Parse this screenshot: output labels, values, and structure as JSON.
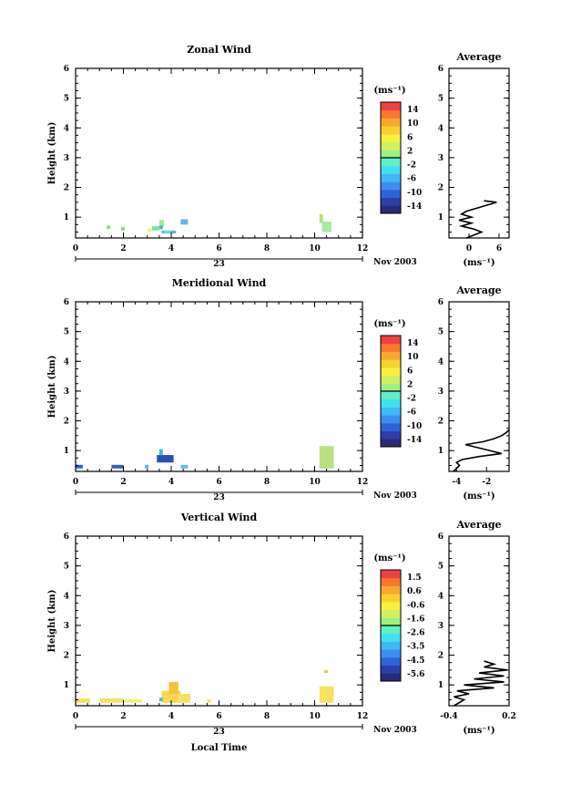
{
  "panels": [
    {
      "title": "Zonal Wind",
      "ylabel": "Height (km)",
      "unit_label": "(ms⁻¹)",
      "colorbar_ticks": [
        "14",
        "10",
        "6",
        "2",
        "-2",
        "-6",
        "-10",
        "-14"
      ],
      "colorbar_range": [
        -16,
        16
      ],
      "avg_title": "Average",
      "avg_ticks": [
        "0",
        "6"
      ],
      "avg_xlim": [
        -4,
        8
      ],
      "avg_unit": "(ms⁻¹)",
      "avg_profile": [
        [
          0.3,
          -0.5
        ],
        [
          0.4,
          1.0
        ],
        [
          0.5,
          2.5
        ],
        [
          0.6,
          1.0
        ],
        [
          0.7,
          -1.5
        ],
        [
          0.8,
          0.5
        ],
        [
          0.9,
          -2.0
        ],
        [
          1.0,
          0.5
        ],
        [
          1.1,
          -1.5
        ],
        [
          1.2,
          -0.5
        ],
        [
          1.3,
          1.5
        ],
        [
          1.4,
          3.5
        ],
        [
          1.5,
          5.5
        ],
        [
          1.55,
          3.0
        ]
      ],
      "cells": [
        [
          1.3,
          0.6,
          0.15,
          0.12,
          "#8cd68c"
        ],
        [
          1.9,
          0.55,
          0.15,
          0.12,
          "#8cd68c"
        ],
        [
          3.0,
          0.5,
          0.2,
          0.12,
          "#f0f080"
        ],
        [
          3.2,
          0.55,
          0.3,
          0.15,
          "#7fe0b0"
        ],
        [
          3.5,
          0.7,
          0.2,
          0.2,
          "#a0e8a0"
        ],
        [
          3.5,
          0.6,
          0.15,
          0.12,
          "#40c0c0"
        ],
        [
          3.6,
          0.45,
          0.6,
          0.1,
          "#5fb0e0"
        ],
        [
          3.7,
          0.45,
          0.3,
          0.1,
          "#60e0d0"
        ],
        [
          4.4,
          0.75,
          0.3,
          0.18,
          "#60b8e8"
        ],
        [
          10.2,
          0.8,
          0.15,
          0.3,
          "#b8e080"
        ],
        [
          10.3,
          0.5,
          0.4,
          0.35,
          "#a8e8a0"
        ]
      ]
    },
    {
      "title": "Meridional Wind",
      "ylabel": "Height (km)",
      "unit_label": "(ms⁻¹)",
      "colorbar_ticks": [
        "14",
        "10",
        "6",
        "2",
        "-2",
        "-6",
        "-10",
        "-14"
      ],
      "colorbar_range": [
        -16,
        16
      ],
      "avg_title": "Average",
      "avg_ticks": [
        "-4",
        "-2"
      ],
      "avg_xlim": [
        -4.5,
        -0.5
      ],
      "avg_unit": "(ms⁻¹)",
      "avg_profile": [
        [
          0.3,
          -4.2
        ],
        [
          0.5,
          -3.8
        ],
        [
          0.6,
          -4.0
        ],
        [
          0.7,
          -3.6
        ],
        [
          0.8,
          -2.5
        ],
        [
          0.9,
          -1.0
        ],
        [
          1.0,
          -1.8
        ],
        [
          1.1,
          -2.6
        ],
        [
          1.2,
          -3.4
        ],
        [
          1.3,
          -2.2
        ],
        [
          1.4,
          -1.5
        ],
        [
          1.5,
          -1.0
        ],
        [
          1.6,
          -0.7
        ],
        [
          1.7,
          -0.5
        ]
      ],
      "cells": [
        [
          0.0,
          0.4,
          0.3,
          0.12,
          "#3060c0"
        ],
        [
          1.5,
          0.4,
          0.5,
          0.12,
          "#3060c0"
        ],
        [
          2.9,
          0.4,
          0.15,
          0.12,
          "#5fb0e0"
        ],
        [
          3.4,
          0.6,
          0.7,
          0.25,
          "#2c50b8"
        ],
        [
          3.5,
          0.85,
          0.15,
          0.2,
          "#40c0c0"
        ],
        [
          4.4,
          0.4,
          0.3,
          0.12,
          "#60b8e8"
        ],
        [
          10.2,
          0.4,
          0.6,
          0.75,
          "#b8e080"
        ]
      ]
    },
    {
      "title": "Vertical Wind",
      "ylabel": "Height (km)",
      "unit_label": "(ms⁻¹)",
      "colorbar_ticks": [
        "1.5",
        "0.6",
        "-0.6",
        "-1.6",
        "-2.6",
        "-3.5",
        "-4.5",
        "-5.6"
      ],
      "colorbar_range": [
        -6,
        2
      ],
      "avg_title": "Average",
      "avg_ticks": [
        "-0.4",
        "0.2"
      ],
      "avg_xlim": [
        -0.4,
        0.2
      ],
      "avg_unit": "(ms⁻¹)",
      "avg_profile": [
        [
          0.3,
          -0.35
        ],
        [
          0.5,
          -0.25
        ],
        [
          0.6,
          -0.35
        ],
        [
          0.7,
          -0.2
        ],
        [
          0.8,
          -0.32
        ],
        [
          0.9,
          0.05
        ],
        [
          1.0,
          -0.25
        ],
        [
          1.1,
          0.15
        ],
        [
          1.2,
          -0.15
        ],
        [
          1.3,
          0.15
        ],
        [
          1.4,
          -0.1
        ],
        [
          1.5,
          0.18
        ],
        [
          1.6,
          -0.05
        ],
        [
          1.7,
          0.05
        ],
        [
          1.8,
          -0.05
        ]
      ],
      "cells": [
        [
          0.0,
          0.4,
          0.6,
          0.15,
          "#f8e060"
        ],
        [
          1.0,
          0.4,
          1.0,
          0.15,
          "#f8e060"
        ],
        [
          2.0,
          0.4,
          0.8,
          0.12,
          "#f0f080"
        ],
        [
          3.6,
          0.4,
          0.8,
          0.4,
          "#f8d850"
        ],
        [
          3.9,
          0.7,
          0.4,
          0.4,
          "#f8c040"
        ],
        [
          3.5,
          0.45,
          0.15,
          0.12,
          "#5fb0e0"
        ],
        [
          4.3,
          0.4,
          0.5,
          0.3,
          "#f8e060"
        ],
        [
          5.5,
          0.4,
          0.15,
          0.12,
          "#f8e060"
        ],
        [
          10.2,
          0.4,
          0.6,
          0.55,
          "#f8e060"
        ],
        [
          10.4,
          1.4,
          0.15,
          0.1,
          "#f8c040"
        ]
      ]
    }
  ],
  "x_ticks": [
    "0",
    "2",
    "4",
    "6",
    "8",
    "10",
    "12"
  ],
  "x_range": [
    0,
    12
  ],
  "y_ticks": [
    "1",
    "2",
    "3",
    "4",
    "5",
    "6"
  ],
  "y_range": [
    0.3,
    6
  ],
  "date_tick": "23",
  "date_label": "Nov 2003",
  "xlabel_bottom": "Local Time",
  "colorbar_colors": [
    "#2a2a78",
    "#2c3ea8",
    "#2c64d8",
    "#3c8ef0",
    "#40b8f8",
    "#40e0f0",
    "#60f0c8",
    "#a0f080",
    "#d0f060",
    "#f8f040",
    "#f8d030",
    "#f8a830",
    "#f87830",
    "#f04040"
  ]
}
